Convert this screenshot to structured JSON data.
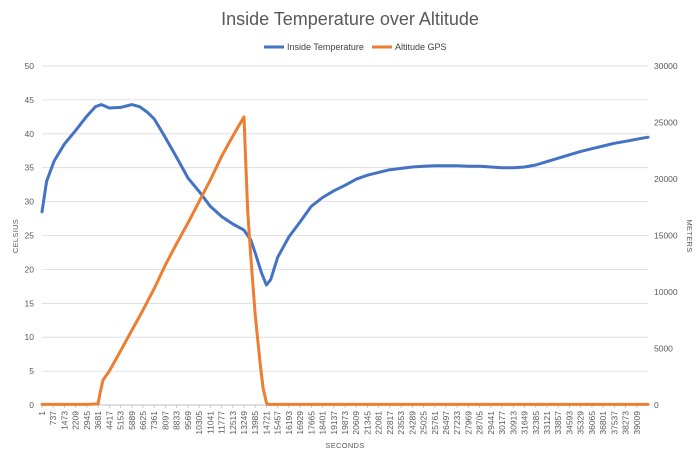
{
  "chart_data": {
    "type": "line",
    "title": "Inside Temperature over Altitude",
    "xlabel": "SECONDS",
    "ylabel_left": "CELSIUS",
    "ylabel_right": "METERS",
    "ylim_left": [
      0,
      50
    ],
    "ylim_right": [
      0,
      30000
    ],
    "yticks_left": [
      "0",
      "5",
      "10",
      "15",
      "20",
      "25",
      "30",
      "35",
      "40",
      "45",
      "50"
    ],
    "yticks_right": [
      "0",
      "5000",
      "10000",
      "15000",
      "20000",
      "25000",
      "30000"
    ],
    "xticks": [
      "1",
      "737",
      "1473",
      "2209",
      "2945",
      "3681",
      "4417",
      "5153",
      "5889",
      "6625",
      "7361",
      "8097",
      "8833",
      "9569",
      "10305",
      "11041",
      "11777",
      "12513",
      "13249",
      "13985",
      "14721",
      "15457",
      "16193",
      "16929",
      "17665",
      "18401",
      "19137",
      "19873",
      "20609",
      "21345",
      "22081",
      "22817",
      "23553",
      "24289",
      "25025",
      "25761",
      "26497",
      "27233",
      "27969",
      "28705",
      "29441",
      "30177",
      "30913",
      "31649",
      "32385",
      "33121",
      "33857",
      "34593",
      "35329",
      "36065",
      "36801",
      "37537",
      "38273",
      "39009"
    ],
    "x_range": [
      1,
      39745
    ],
    "grid": true,
    "legend_position": "top",
    "series": [
      {
        "name": "Inside Temperature",
        "axis": "left",
        "color": "#4472c4",
        "x": [
          1,
          300,
          800,
          1473,
          2209,
          2900,
          3500,
          3900,
          4417,
          5153,
          5889,
          6400,
          6900,
          7361,
          8000,
          8833,
          9569,
          10305,
          11041,
          11777,
          12513,
          13249,
          13700,
          14000,
          14400,
          14721,
          15000,
          15457,
          16193,
          16929,
          17665,
          18401,
          19137,
          19873,
          20609,
          21345,
          22081,
          22817,
          23553,
          24289,
          25025,
          25761,
          26497,
          27233,
          27969,
          28705,
          29441,
          30177,
          30913,
          31649,
          32385,
          33121,
          33857,
          34593,
          35329,
          36065,
          36801,
          37537,
          38273,
          39009,
          39745
        ],
        "values": [
          28.5,
          33,
          36,
          38.5,
          40.5,
          42.5,
          44,
          44.3,
          43.8,
          43.9,
          44.3,
          44,
          43.2,
          42.2,
          39.8,
          36.5,
          33.5,
          31.5,
          29.3,
          27.8,
          26.7,
          25.8,
          24.3,
          22.3,
          19.5,
          17.7,
          18.5,
          21.8,
          24.8,
          27,
          29.3,
          30.6,
          31.6,
          32.4,
          33.3,
          33.9,
          34.3,
          34.7,
          34.9,
          35.1,
          35.2,
          35.3,
          35.3,
          35.3,
          35.2,
          35.2,
          35.1,
          35,
          35,
          35.1,
          35.4,
          35.9,
          36.4,
          36.9,
          37.4,
          37.8,
          38.2,
          38.6,
          38.9,
          39.2,
          39.5
        ]
      },
      {
        "name": "Altitude GPS",
        "axis": "right",
        "color": "#ed7d31",
        "x": [
          1,
          2945,
          3681,
          3800,
          4000,
          4417,
          5153,
          5889,
          6625,
          7361,
          8097,
          8833,
          9569,
          10305,
          11041,
          11777,
          12513,
          13249,
          13350,
          13500,
          13700,
          13985,
          14300,
          14500,
          14721,
          14800,
          14900,
          15457,
          20609,
          25761,
          30913,
          36065,
          39745
        ],
        "values": [
          50,
          50,
          100,
          1000,
          2200,
          3000,
          4800,
          6600,
          8400,
          10300,
          12400,
          14300,
          16100,
          18000,
          19900,
          22000,
          23800,
          25500,
          22000,
          17000,
          13000,
          8000,
          3800,
          1500,
          200,
          50,
          50,
          50,
          50,
          50,
          50,
          50,
          50
        ]
      }
    ]
  }
}
